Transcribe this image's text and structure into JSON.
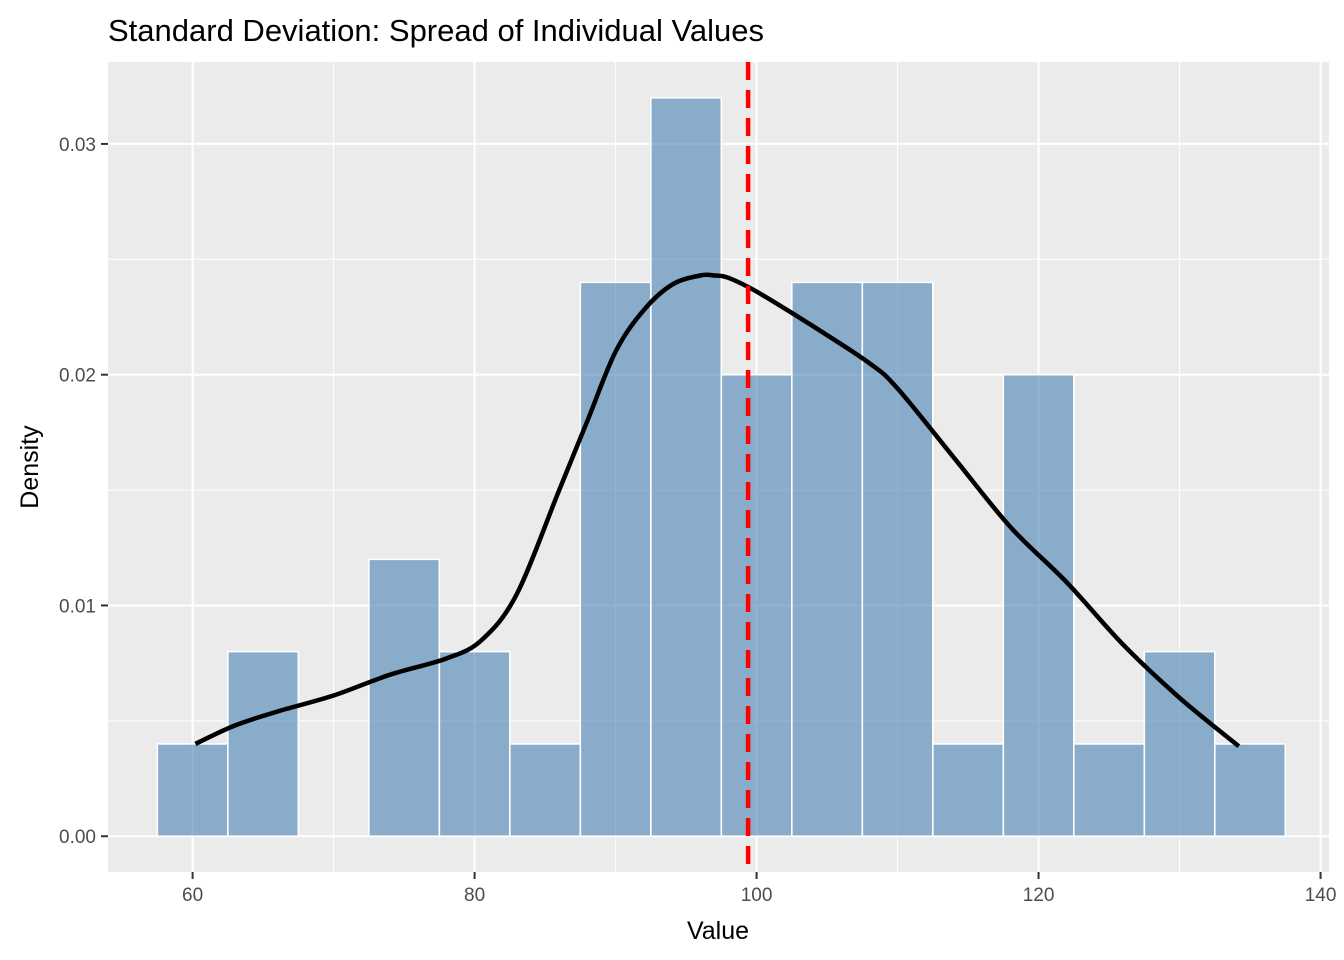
{
  "chart_data": {
    "type": "bar",
    "title": "Standard Deviation: Spread of Individual Values",
    "xlabel": "Value",
    "ylabel": "Density",
    "xlim": [
      54.0,
      140.6
    ],
    "ylim": [
      -0.00155,
      0.03355
    ],
    "x_ticks": [
      60,
      80,
      100,
      120,
      140
    ],
    "x_tick_labels": [
      "60",
      "80",
      "100",
      "120",
      "140"
    ],
    "y_ticks": [
      0.0,
      0.01,
      0.02,
      0.03
    ],
    "y_tick_labels": [
      "0.00",
      "0.01",
      "0.02",
      "0.03"
    ],
    "grid": true,
    "bins": [
      {
        "x0": 57.5,
        "x1": 62.5,
        "density": 0.004
      },
      {
        "x0": 62.5,
        "x1": 67.5,
        "density": 0.008
      },
      {
        "x0": 67.5,
        "x1": 72.5,
        "density": 0.0
      },
      {
        "x0": 72.5,
        "x1": 77.5,
        "density": 0.012
      },
      {
        "x0": 77.5,
        "x1": 82.5,
        "density": 0.008
      },
      {
        "x0": 82.5,
        "x1": 87.5,
        "density": 0.004
      },
      {
        "x0": 87.5,
        "x1": 92.5,
        "density": 0.024
      },
      {
        "x0": 92.5,
        "x1": 97.5,
        "density": 0.032
      },
      {
        "x0": 97.5,
        "x1": 102.5,
        "density": 0.02
      },
      {
        "x0": 102.5,
        "x1": 107.5,
        "density": 0.024
      },
      {
        "x0": 107.5,
        "x1": 112.5,
        "density": 0.024
      },
      {
        "x0": 112.5,
        "x1": 117.5,
        "density": 0.004
      },
      {
        "x0": 117.5,
        "x1": 122.5,
        "density": 0.02
      },
      {
        "x0": 122.5,
        "x1": 127.5,
        "density": 0.004
      },
      {
        "x0": 127.5,
        "x1": 132.5,
        "density": 0.008
      },
      {
        "x0": 132.5,
        "x1": 137.5,
        "density": 0.004
      }
    ],
    "density_curve": {
      "x": [
        60.2,
        63,
        66,
        70,
        74,
        78,
        80.5,
        83,
        86,
        88,
        90,
        92,
        94,
        96,
        97,
        98,
        100,
        104,
        108,
        110,
        114,
        118,
        122,
        126,
        130,
        134.2
      ],
      "y": [
        0.004,
        0.0048,
        0.0054,
        0.0061,
        0.007,
        0.0077,
        0.0085,
        0.0105,
        0.015,
        0.018,
        0.021,
        0.0228,
        0.0239,
        0.0243,
        0.0243,
        0.0242,
        0.0236,
        0.0221,
        0.0205,
        0.0194,
        0.0164,
        0.0134,
        0.011,
        0.0083,
        0.006,
        0.0039
      ]
    },
    "mean_line": {
      "x": 99.4,
      "color": "#ff0000"
    },
    "bar_fill": "#4682b4",
    "bar_opacity": 0.6,
    "panel_background": "#ebebeb",
    "curve_color": "#000000"
  }
}
